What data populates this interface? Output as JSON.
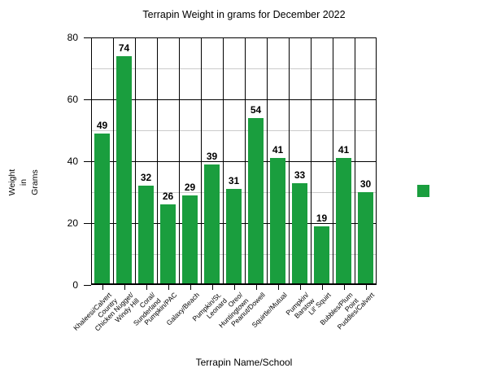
{
  "title": "Terrapin Weight in grams for December 2022",
  "chart_data": {
    "type": "bar",
    "title": "Terrapin Weight in grams for December 2022",
    "xlabel": "Terrapin Name/School",
    "ylabel": "Weight in Grams",
    "categories": [
      "Khaleesi/Calvert Country",
      "Chicken Nugget/ Windy Hill",
      "Coral/ Sunderland",
      "Pumpkin/PAC",
      "Galaxy/Beach",
      "Pumpkin/St. Leonard",
      "Oreo/ Huntingtown",
      "Peanut/Dowell",
      "Squirtle/Mutual",
      "Pumpkin/ Barstow",
      "Lil' Squirt",
      "Bubbles/Plum Point",
      "Puddles/Calvert"
    ],
    "category_label_lines": [
      [
        "Khaleesi/Calvert",
        "Country"
      ],
      [
        "Chicken Nugget/",
        "Windy Hill"
      ],
      [
        "Coral/",
        "Sunderland"
      ],
      [
        "Pumpkin/PAC"
      ],
      [
        "Galaxy/Beach"
      ],
      [
        "Pumpkin/St.",
        "Leonard"
      ],
      [
        "Oreo/",
        "Huntingtown"
      ],
      [
        "Peanut/Dowell"
      ],
      [
        "Squirtle/Mutual"
      ],
      [
        "Pumpkin/",
        "Barstow"
      ],
      [
        "Lil' Squirt"
      ],
      [
        "Bubbles/Plum",
        "Point"
      ],
      [
        "Puddles/Calvert"
      ]
    ],
    "values": [
      49,
      74,
      32,
      26,
      29,
      39,
      31,
      54,
      41,
      33,
      19,
      41,
      30
    ],
    "ylim": [
      0,
      80
    ],
    "yticks": [
      0,
      20,
      40,
      60,
      80
    ],
    "minor_yticks": [
      10,
      30,
      50,
      70
    ],
    "grid": true,
    "legend_position": "right",
    "colors": {
      "bar": "#1A9E3E",
      "major_grid": "#000000",
      "minor_grid": "#CBCBCB",
      "text": "#000000"
    }
  },
  "y_axis": {
    "title_lines": [
      "Weight",
      "in",
      "Grams"
    ]
  },
  "legend": {
    "marker_color": "#1A9E3E"
  }
}
